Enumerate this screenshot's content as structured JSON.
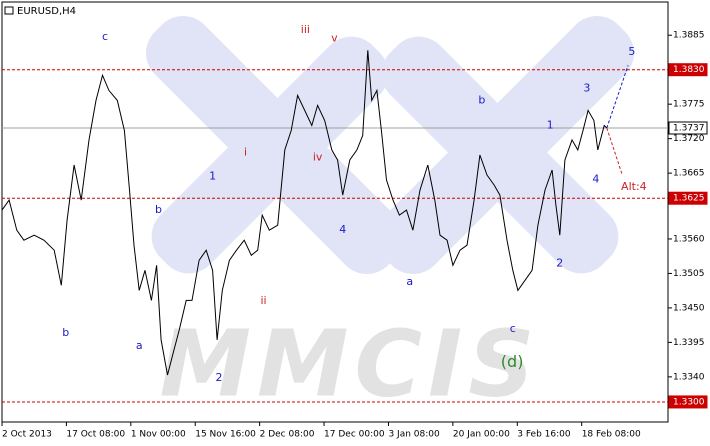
{
  "chart_data": {
    "type": "line",
    "title": "EURUSD,H4",
    "watermark": "MMCIS",
    "xlim": [
      0,
      10.34
    ],
    "ylim": [
      1.3268,
      1.3938
    ],
    "xticks": [
      {
        "value": 0,
        "label": "2 Oct 2013"
      },
      {
        "value": 1,
        "label": "17 Oct 08:00"
      },
      {
        "value": 2,
        "label": "1 Nov 00:00"
      },
      {
        "value": 3,
        "label": "15 Nov 16:00"
      },
      {
        "value": 4,
        "label": "2 Dec 08:00"
      },
      {
        "value": 5,
        "label": "17 Dec 00:00"
      },
      {
        "value": 6,
        "label": "3 Jan 08:00"
      },
      {
        "value": 7,
        "label": "20 Jan 00:00"
      },
      {
        "value": 8,
        "label": "3 Feb 16:00"
      },
      {
        "value": 9,
        "label": "18 Feb 08:00"
      }
    ],
    "yticks": [
      {
        "value": 1.3885,
        "label": "1.3885"
      },
      {
        "value": 1.3775,
        "label": "1.3775"
      },
      {
        "value": 1.372,
        "label": "1.3720"
      },
      {
        "value": 1.3665,
        "label": "1.3665"
      },
      {
        "value": 1.356,
        "label": "1.3560"
      },
      {
        "value": 1.3505,
        "label": "1.3505"
      },
      {
        "value": 1.345,
        "label": "1.3450"
      },
      {
        "value": 1.3395,
        "label": "1.3395"
      },
      {
        "value": 1.334,
        "label": "1.3340"
      }
    ],
    "levels": [
      {
        "value": 1.383,
        "label": "1.3830",
        "color": "#cc0000",
        "dashed": true
      },
      {
        "value": 1.3737,
        "label": "1.3737",
        "color": "#a0a0a0",
        "dashed": false
      },
      {
        "value": 1.3625,
        "label": "1.3625",
        "color": "#cc0000",
        "dashed": true
      },
      {
        "value": 1.33,
        "label": "1.3300",
        "color": "#cc0000",
        "dashed": true
      }
    ],
    "series": [
      {
        "color": "#000000",
        "dashed": false,
        "x": [
          0.0,
          0.11,
          0.23,
          0.34,
          0.5,
          0.65,
          0.81,
          0.92,
          1.01,
          1.12,
          1.23,
          1.35,
          1.46,
          1.56,
          1.66,
          1.79,
          1.9,
          1.98,
          2.05,
          2.13,
          2.22,
          2.32,
          2.4,
          2.47,
          2.57,
          2.67,
          2.75,
          2.86,
          2.95,
          3.06,
          3.17,
          3.27,
          3.34,
          3.42,
          3.53,
          3.64,
          3.76,
          3.87,
          3.97,
          4.04,
          4.15,
          4.28,
          4.39,
          4.49,
          4.59,
          4.7,
          4.81,
          4.9,
          5.01,
          5.12,
          5.21,
          5.29,
          5.4,
          5.51,
          5.6,
          5.68,
          5.74,
          5.82,
          5.89,
          5.97,
          6.07,
          6.17,
          6.28,
          6.38,
          6.49,
          6.61,
          6.72,
          6.8,
          6.91,
          7.0,
          7.11,
          7.22,
          7.33,
          7.42,
          7.53,
          7.64,
          7.73,
          7.84,
          7.93,
          8.01,
          8.12,
          8.23,
          8.32,
          8.43,
          8.54,
          8.6,
          8.66,
          8.74,
          8.85,
          8.94,
          9.02,
          9.1,
          9.19,
          9.25,
          9.35,
          9.39
        ],
        "values": [
          1.3606,
          1.3622,
          1.3574,
          1.3558,
          1.3566,
          1.3558,
          1.3542,
          1.3486,
          1.359,
          1.3678,
          1.3622,
          1.3718,
          1.3781,
          1.3821,
          1.3797,
          1.3781,
          1.3733,
          1.3638,
          1.355,
          1.3478,
          1.351,
          1.3462,
          1.3518,
          1.3399,
          1.3343,
          1.3383,
          1.3414,
          1.3462,
          1.3462,
          1.3526,
          1.3542,
          1.351,
          1.3399,
          1.3478,
          1.3526,
          1.3542,
          1.3558,
          1.3534,
          1.3542,
          1.3598,
          1.3574,
          1.3582,
          1.3702,
          1.3733,
          1.3789,
          1.3765,
          1.3741,
          1.3773,
          1.3749,
          1.3702,
          1.3686,
          1.363,
          1.3686,
          1.3702,
          1.3725,
          1.3861,
          1.3781,
          1.3797,
          1.3733,
          1.3654,
          1.3622,
          1.3598,
          1.3606,
          1.3574,
          1.3638,
          1.3678,
          1.3622,
          1.3566,
          1.3558,
          1.3518,
          1.3542,
          1.355,
          1.3622,
          1.3694,
          1.3662,
          1.3646,
          1.363,
          1.3558,
          1.351,
          1.3478,
          1.3494,
          1.351,
          1.3582,
          1.3638,
          1.367,
          1.3614,
          1.3566,
          1.3686,
          1.3718,
          1.3702,
          1.3733,
          1.3765,
          1.3749,
          1.3702,
          1.3741,
          1.3737
        ]
      },
      {
        "color": "#1a1acc",
        "dashed": true,
        "x": [
          9.39,
          9.72
        ],
        "values": [
          1.3737,
          1.3837
        ]
      },
      {
        "color": "#cc2222",
        "dashed": true,
        "x": [
          9.39,
          9.63
        ],
        "values": [
          1.3737,
          1.3662
        ]
      }
    ],
    "annotations": [
      {
        "text": "c",
        "x": 1.6,
        "y": 1.3882,
        "color": "#1a1acc"
      },
      {
        "text": "iii",
        "x": 4.71,
        "y": 1.3893,
        "color": "#cc2222"
      },
      {
        "text": "v",
        "x": 5.16,
        "y": 1.388,
        "color": "#cc2222"
      },
      {
        "text": "5",
        "x": 9.78,
        "y": 1.3858,
        "color": "#1a1acc"
      },
      {
        "text": "b",
        "x": 7.45,
        "y": 1.3781,
        "color": "#1a1acc"
      },
      {
        "text": "1",
        "x": 8.51,
        "y": 1.3741,
        "color": "#1a1acc"
      },
      {
        "text": "3",
        "x": 9.08,
        "y": 1.38,
        "color": "#1a1acc"
      },
      {
        "text": "i",
        "x": 3.78,
        "y": 1.3698,
        "color": "#cc2222"
      },
      {
        "text": "iv",
        "x": 4.9,
        "y": 1.369,
        "color": "#cc2222"
      },
      {
        "text": "1",
        "x": 3.27,
        "y": 1.366,
        "color": "#1a1acc"
      },
      {
        "text": "4",
        "x": 9.22,
        "y": 1.3655,
        "color": "#1a1acc"
      },
      {
        "text": "Alt:4",
        "x": 9.81,
        "y": 1.3643,
        "color": "#cc2222"
      },
      {
        "text": "b",
        "x": 2.43,
        "y": 1.3606,
        "color": "#1a1acc"
      },
      {
        "text": "4",
        "x": 5.29,
        "y": 1.3574,
        "color": "#1a1acc"
      },
      {
        "text": "2",
        "x": 8.66,
        "y": 1.3521,
        "color": "#1a1acc"
      },
      {
        "text": "a",
        "x": 6.33,
        "y": 1.3491,
        "color": "#1a1acc"
      },
      {
        "text": "ii",
        "x": 4.06,
        "y": 1.3461,
        "color": "#cc2222"
      },
      {
        "text": "c",
        "x": 7.93,
        "y": 1.3416,
        "color": "#1a1acc"
      },
      {
        "text": "b",
        "x": 0.99,
        "y": 1.341,
        "color": "#1a1acc"
      },
      {
        "text": "a",
        "x": 2.13,
        "y": 1.3389,
        "color": "#1a1acc"
      },
      {
        "text": "(d)",
        "x": 7.92,
        "y": 1.3363,
        "color": "#2e8b2e",
        "large": true
      },
      {
        "text": "2",
        "x": 3.37,
        "y": 1.3338,
        "color": "#1a1acc"
      }
    ]
  }
}
